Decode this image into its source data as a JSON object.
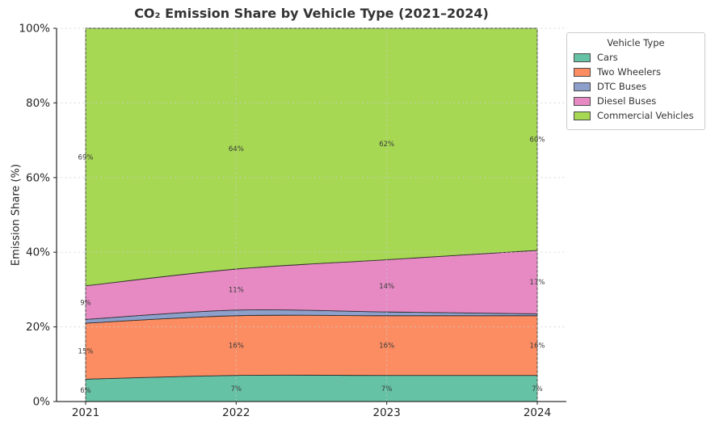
{
  "chart_data": {
    "type": "area",
    "stacked": true,
    "title": "CO₂ Emission Share by Vehicle Type (2021–2024)",
    "xlabel": "",
    "ylabel": "Emission Share (%)",
    "x": [
      2021,
      2022,
      2023,
      2024
    ],
    "x_tick_labels": [
      "2021",
      "2022",
      "2023",
      "2024"
    ],
    "y_ticks": [
      0,
      20,
      40,
      60,
      80,
      100
    ],
    "y_tick_labels": [
      "0%",
      "20%",
      "40%",
      "60%",
      "80%",
      "100%"
    ],
    "ylim": [
      0,
      100
    ],
    "grid": true,
    "legend": {
      "title": "Vehicle Type",
      "position": "outside-upper-right",
      "entries": [
        "Cars",
        "Two Wheelers",
        "DTC Buses",
        "Diesel Buses",
        "Commercial Vehicles"
      ]
    },
    "series": [
      {
        "name": "Cars",
        "color": "#66c2a5",
        "values": [
          6,
          7,
          7,
          7
        ],
        "point_labels": [
          "6%",
          "7%",
          "7%",
          "7%"
        ]
      },
      {
        "name": "Two Wheelers",
        "color": "#fc8d62",
        "values": [
          15,
          16,
          16,
          16
        ],
        "point_labels": [
          "15%",
          "16%",
          "16%",
          "16%"
        ]
      },
      {
        "name": "DTC Buses",
        "color": "#8da0cb",
        "values": [
          1,
          1.5,
          1,
          0.5
        ],
        "point_labels": [
          "",
          "",
          "",
          ""
        ]
      },
      {
        "name": "Diesel Buses",
        "color": "#e78ac3",
        "values": [
          9,
          11,
          14,
          17
        ],
        "point_labels": [
          "9%",
          "11%",
          "14%",
          "17%"
        ]
      },
      {
        "name": "Commercial Vehicles",
        "color": "#a6d854",
        "values": [
          69,
          64.5,
          62,
          59.5
        ],
        "point_labels": [
          "69%",
          "64%",
          "62%",
          "60%"
        ]
      }
    ],
    "annotation_color": "#3a3a3a",
    "edge_color": "#262626",
    "grid_color": "#cccccc",
    "axis_color": "#333333",
    "tick_label_color": "#262626"
  }
}
